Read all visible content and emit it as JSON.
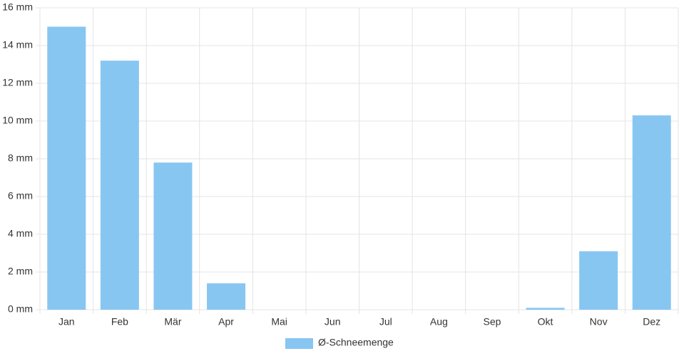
{
  "chart_data": {
    "type": "bar",
    "categories": [
      "Jan",
      "Feb",
      "Mär",
      "Apr",
      "Mai",
      "Jun",
      "Jul",
      "Aug",
      "Sep",
      "Okt",
      "Nov",
      "Dez"
    ],
    "series": [
      {
        "name": "Ø-Schneemenge",
        "color": "#88c6f2",
        "values": [
          15,
          13.2,
          7.8,
          1.4,
          0,
          0,
          0,
          0,
          0,
          0.1,
          3.1,
          10.3
        ]
      }
    ],
    "ylim": [
      0,
      16
    ],
    "yticks": [
      {
        "value": 0,
        "label": "0 mm"
      },
      {
        "value": 2,
        "label": "2 mm"
      },
      {
        "value": 4,
        "label": "4 mm"
      },
      {
        "value": 6,
        "label": "6 mm"
      },
      {
        "value": 8,
        "label": "8 mm"
      },
      {
        "value": 10,
        "label": "10 mm"
      },
      {
        "value": 12,
        "label": "12 mm"
      },
      {
        "value": 14,
        "label": "14 mm"
      },
      {
        "value": 16,
        "label": "16 mm"
      }
    ],
    "grid": true,
    "legend": "bottom"
  }
}
